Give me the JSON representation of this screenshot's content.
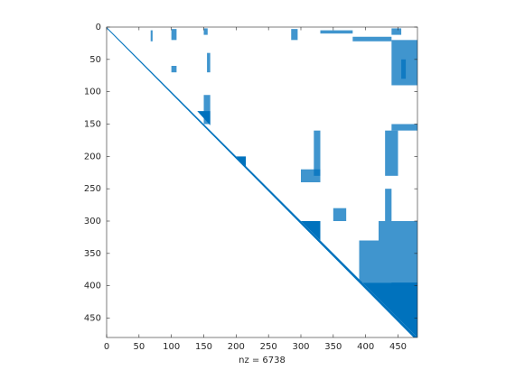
{
  "chart_data": {
    "type": "spy",
    "xlabel": "nz = 6738",
    "color": "#0072bd",
    "xlim": [
      0,
      480
    ],
    "ylim": [
      0,
      480
    ],
    "y_reversed": true,
    "xticks": [
      0,
      50,
      100,
      150,
      200,
      250,
      300,
      350,
      400,
      450
    ],
    "yticks": [
      0,
      50,
      100,
      150,
      200,
      250,
      300,
      350,
      400,
      450
    ],
    "polygons": [
      [
        [
          0,
          0
        ],
        [
          480,
          480
        ],
        [
          474,
          480
        ],
        [
          0,
          2
        ]
      ],
      [
        [
          395,
          395
        ],
        [
          480,
          395
        ],
        [
          480,
          480
        ]
      ],
      [
        [
          140,
          130
        ],
        [
          160,
          130
        ],
        [
          160,
          152
        ]
      ],
      [
        [
          200,
          200
        ],
        [
          215,
          200
        ],
        [
          215,
          217
        ]
      ],
      [
        [
          300,
          300
        ],
        [
          330,
          300
        ],
        [
          330,
          330
        ]
      ]
    ],
    "blocks": [
      [
        68,
        71,
        5,
        22
      ],
      [
        100,
        108,
        3,
        20
      ],
      [
        150,
        156,
        2,
        12
      ],
      [
        285,
        295,
        3,
        20
      ],
      [
        330,
        380,
        5,
        10
      ],
      [
        380,
        440,
        15,
        22
      ],
      [
        440,
        455,
        2,
        12
      ],
      [
        440,
        480,
        20,
        90
      ],
      [
        455,
        462,
        50,
        80
      ],
      [
        440,
        480,
        150,
        160
      ],
      [
        100,
        108,
        60,
        70
      ],
      [
        155,
        160,
        40,
        70
      ],
      [
        150,
        160,
        105,
        150
      ],
      [
        320,
        330,
        160,
        230
      ],
      [
        300,
        330,
        220,
        240
      ],
      [
        430,
        450,
        160,
        230
      ],
      [
        430,
        440,
        250,
        300
      ],
      [
        420,
        480,
        300,
        330
      ],
      [
        390,
        480,
        330,
        395
      ],
      [
        440,
        480,
        395,
        400
      ],
      [
        350,
        370,
        280,
        300
      ]
    ]
  }
}
